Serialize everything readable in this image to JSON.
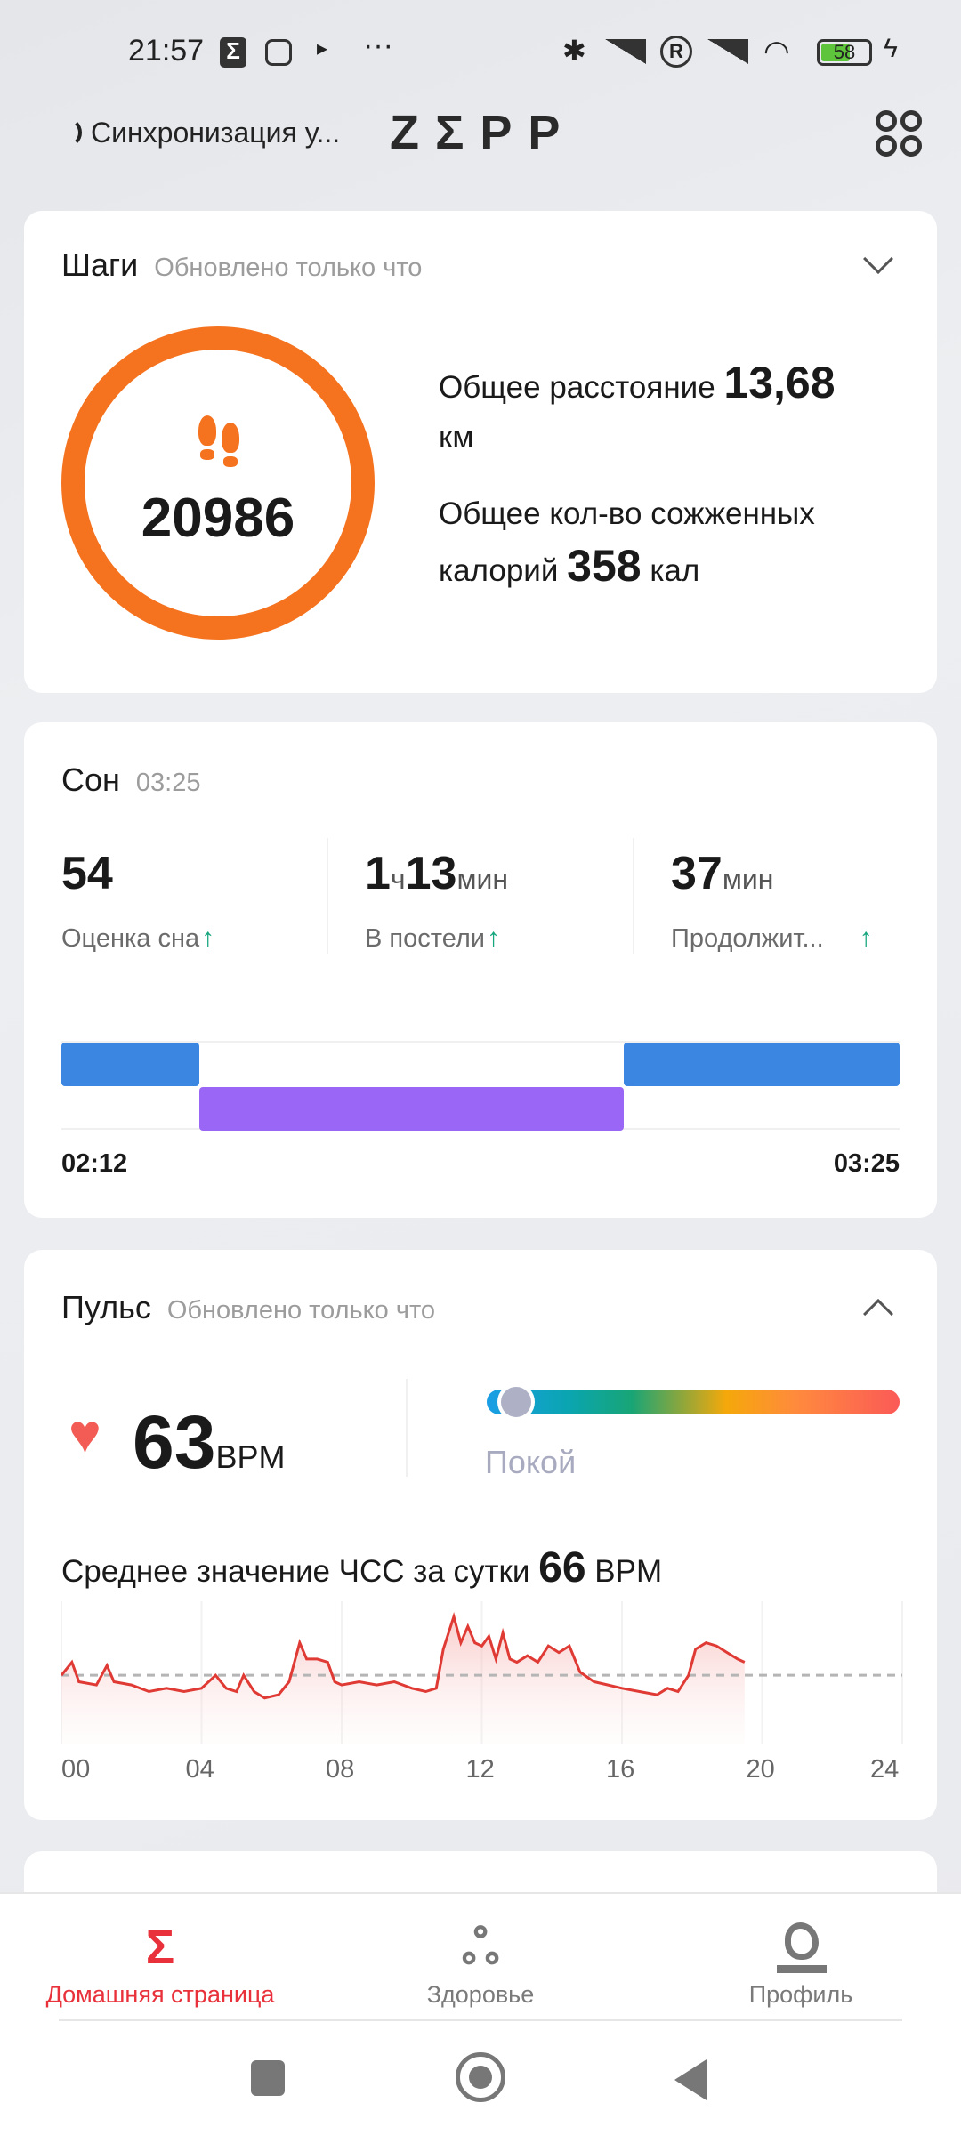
{
  "status_bar": {
    "time": "21:57",
    "battery": "58",
    "icons": [
      "zepp-notification-icon",
      "instagram-icon",
      "play-icon",
      "more-dots-icon",
      "bluetooth-icon",
      "signal-icon",
      "roaming-icon",
      "signal-icon",
      "wifi-icon",
      "battery-icon",
      "charging-icon"
    ]
  },
  "header": {
    "sync_text": "Синхронизация у...",
    "logo": "ZΣPP",
    "menu_icon": "grid-icon"
  },
  "steps": {
    "title": "Шаги",
    "updated": "Обновлено только что",
    "count": "20986",
    "distance_label": "Общее расстояние",
    "distance_value": "13,68",
    "distance_unit": "км",
    "calories_label_1": "Общее кол-во сожженных",
    "calories_label_2": "калорий",
    "calories_value": "358",
    "calories_unit": "кал",
    "ring_progress": 1.0,
    "accent": "#f5731f"
  },
  "sleep": {
    "title": "Сон",
    "time": "03:25",
    "stats": [
      {
        "value_parts": [
          "1",
          "ч",
          "13",
          "мин"
        ],
        "label": "В постели"
      },
      {
        "value": "54",
        "label": "Оценка сна"
      },
      {
        "value": "37",
        "unit": "мин",
        "label": "Продолжит..."
      }
    ],
    "score": {
      "value": "54",
      "label": "Оценка сна"
    },
    "in_bed": {
      "h": "1",
      "h_unit": "ч",
      "m": "13",
      "m_unit": "мин",
      "label": "В постели"
    },
    "duration": {
      "value": "37",
      "unit": "мин",
      "label": "Продолжит..."
    },
    "start": "02:12",
    "end": "03:25",
    "segments": [
      {
        "start": "02:12",
        "end": "02:24",
        "level": 1,
        "color": "#3b86e0"
      },
      {
        "start": "02:24",
        "end": "03:01",
        "level": 2,
        "color": "#9966f5"
      },
      {
        "start": "03:01",
        "end": "03:25",
        "level": 1,
        "color": "#3b86e0"
      }
    ]
  },
  "pulse": {
    "title": "Пульс",
    "updated": "Обновлено только что",
    "current": "63",
    "unit": "BPM",
    "zone": "Покой",
    "zone_position": 0.0,
    "avg_label": "Среднее значение ЧСС за сутки",
    "avg_value": "66",
    "avg_unit": "BPM"
  },
  "chart_data": {
    "type": "area",
    "xlim": [
      0,
      24
    ],
    "ylim": [
      45,
      86
    ],
    "x_ticks": [
      "00",
      "04",
      "08",
      "12",
      "16",
      "20",
      "24"
    ],
    "reference_line": 66,
    "grid": "vertical",
    "color": "#e03a35",
    "points": [
      [
        0,
        66
      ],
      [
        0.3,
        70
      ],
      [
        0.5,
        64
      ],
      [
        1,
        63
      ],
      [
        1.3,
        69
      ],
      [
        1.5,
        64
      ],
      [
        2,
        63
      ],
      [
        2.5,
        61
      ],
      [
        3,
        62
      ],
      [
        3.5,
        61
      ],
      [
        4,
        62
      ],
      [
        4.4,
        66
      ],
      [
        4.7,
        62
      ],
      [
        5,
        61
      ],
      [
        5.2,
        66
      ],
      [
        5.5,
        61
      ],
      [
        5.8,
        59
      ],
      [
        6.2,
        60
      ],
      [
        6.5,
        64
      ],
      [
        6.8,
        76
      ],
      [
        7,
        71
      ],
      [
        7.3,
        71
      ],
      [
        7.6,
        70
      ],
      [
        7.8,
        64
      ],
      [
        8,
        63
      ],
      [
        8.5,
        64
      ],
      [
        9,
        63
      ],
      [
        9.5,
        64
      ],
      [
        10,
        62
      ],
      [
        10.4,
        61
      ],
      [
        10.7,
        62
      ],
      [
        10.9,
        74
      ],
      [
        11.2,
        84
      ],
      [
        11.4,
        76
      ],
      [
        11.6,
        81
      ],
      [
        11.8,
        76
      ],
      [
        12,
        75
      ],
      [
        12.2,
        78
      ],
      [
        12.4,
        71
      ],
      [
        12.6,
        79
      ],
      [
        12.8,
        71
      ],
      [
        13,
        70
      ],
      [
        13.3,
        72
      ],
      [
        13.6,
        70
      ],
      [
        13.9,
        75
      ],
      [
        14.2,
        73
      ],
      [
        14.5,
        75
      ],
      [
        14.8,
        67
      ],
      [
        15.2,
        64
      ],
      [
        15.6,
        63
      ],
      [
        16,
        62
      ],
      [
        16.5,
        61
      ],
      [
        17,
        60
      ],
      [
        17.3,
        62
      ],
      [
        17.6,
        61
      ],
      [
        17.9,
        66
      ],
      [
        18.1,
        74
      ],
      [
        18.4,
        76
      ],
      [
        18.7,
        75
      ],
      [
        19,
        73
      ],
      [
        19.3,
        71
      ],
      [
        19.5,
        70
      ]
    ]
  },
  "bottom_nav": {
    "items": [
      {
        "label": "Домашняя страница",
        "icon": "zepp-home-icon",
        "active": true
      },
      {
        "label": "Здоровье",
        "icon": "health-icon"
      },
      {
        "label": "Профиль",
        "icon": "profile-icon"
      }
    ],
    "active_color": "#e8313a"
  }
}
